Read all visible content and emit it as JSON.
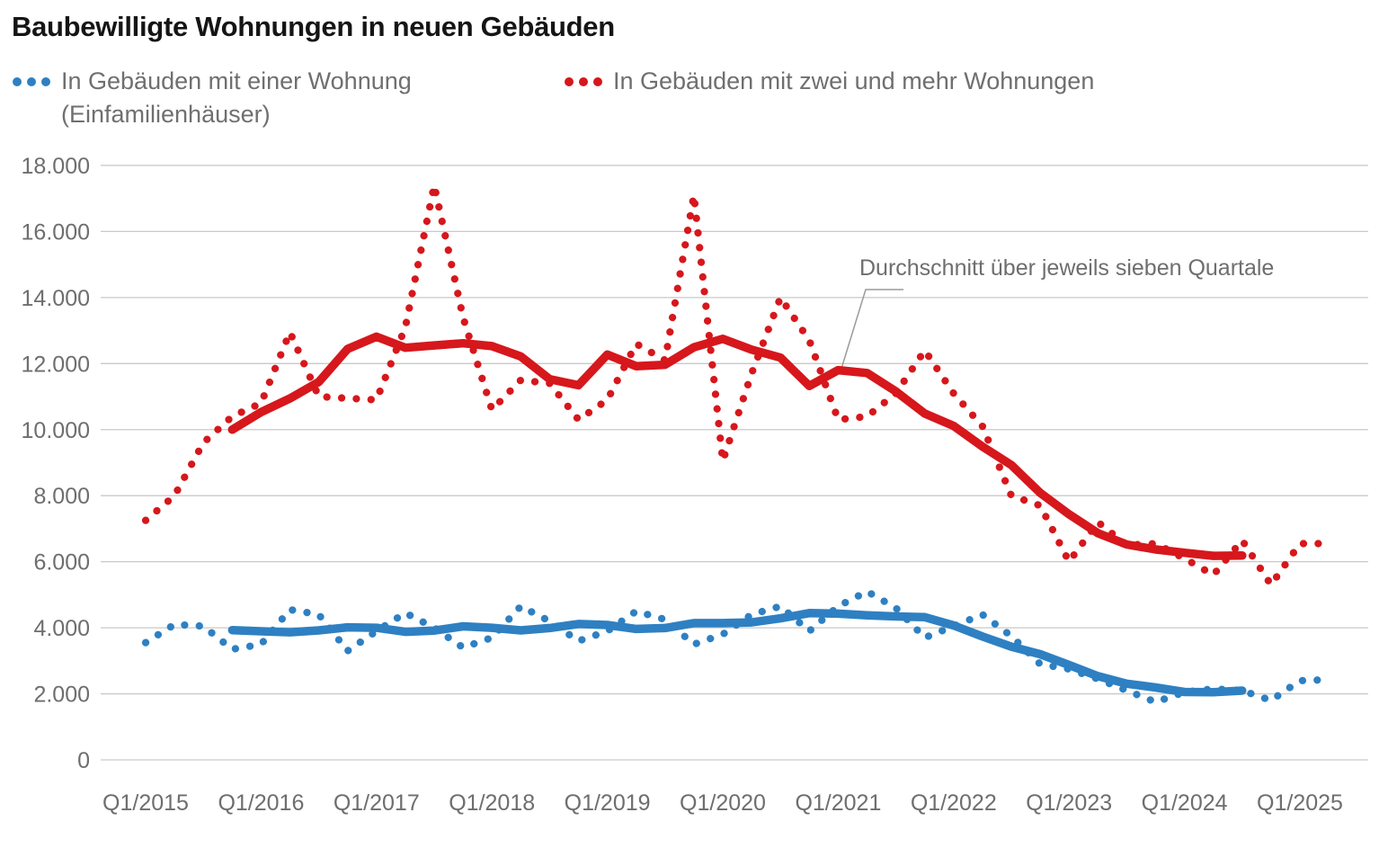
{
  "title": "Baubewilligte Wohnungen in neuen Gebäuden",
  "legend": {
    "items": [
      {
        "label_line1": "In Gebäuden mit einer Wohnung",
        "label_line2": "(Einfamilienhäuser)",
        "color": "#2e80c2"
      },
      {
        "label_line1": "In Gebäuden mit zwei und mehr Wohnungen",
        "label_line2": "",
        "color": "#d6171c"
      }
    ]
  },
  "annotation": {
    "text": "Durchschnitt über jeweils sieben Quartale"
  },
  "colors": {
    "blue": "#2e80c2",
    "red": "#d6171c",
    "grid": "#c9c9c9",
    "axis_text": "#6e6e6e",
    "title_text": "#151515",
    "connector": "#9a9a9a"
  },
  "chart_data": {
    "type": "line",
    "title": "Baubewilligte Wohnungen in neuen Gebäuden",
    "x_first_quarter": "Q1/2015",
    "x_last_quarter": "Q2/2025",
    "x_tick_labels": [
      "Q1/2015",
      "Q1/2016",
      "Q1/2017",
      "Q1/2018",
      "Q1/2019",
      "Q1/2020",
      "Q1/2021",
      "Q1/2022",
      "Q1/2023",
      "Q1/2024",
      "Q1/2025"
    ],
    "y_ticks": [
      {
        "value": 0,
        "label": "0"
      },
      {
        "value": 2000,
        "label": "2.000"
      },
      {
        "value": 4000,
        "label": "4.000"
      },
      {
        "value": 6000,
        "label": "6.000"
      },
      {
        "value": 8000,
        "label": "8.000"
      },
      {
        "value": 10000,
        "label": "10.000"
      },
      {
        "value": 12000,
        "label": "12.000"
      },
      {
        "value": 14000,
        "label": "14.000"
      },
      {
        "value": 16000,
        "label": "16.000"
      },
      {
        "value": 18000,
        "label": "18.000"
      }
    ],
    "ylim": [
      0,
      18000
    ],
    "grid": "horizontal",
    "legend_position": "top",
    "series": [
      {
        "name": "In Gebäuden mit einer Wohnung (Einfamilienhäuser)",
        "style": "dotted",
        "color": "#2e80c2",
        "values": [
          3550,
          4100,
          4050,
          3350,
          3500,
          4550,
          4400,
          3300,
          3900,
          4450,
          4000,
          3400,
          3700,
          4650,
          4200,
          3600,
          3900,
          4500,
          4250,
          3500,
          3800,
          4400,
          4650,
          3900,
          4650,
          5100,
          4600,
          3700,
          4050,
          4400,
          3750,
          2900,
          2750,
          2450,
          2100,
          1750,
          2050,
          2150,
          2100,
          1800,
          2400,
          2430
        ]
      },
      {
        "name": "In Gebäuden mit zwei und mehr Wohnungen",
        "style": "dotted",
        "color": "#d6171c",
        "values": [
          7250,
          8000,
          9600,
          10400,
          10800,
          12950,
          11000,
          10950,
          10900,
          13100,
          17400,
          13400,
          10600,
          11500,
          11400,
          10300,
          10900,
          12600,
          12100,
          17100,
          9050,
          11700,
          14000,
          12700,
          10300,
          10400,
          11100,
          12400,
          11100,
          10100,
          8000,
          7700,
          6000,
          7200,
          6500,
          6550,
          6100,
          5600,
          6650,
          5300,
          6550,
          6550
        ]
      }
    ],
    "derived_lines": {
      "label": "Durchschnitt über jeweils sieben Quartale",
      "type": "centered_moving_average",
      "window": 7
    }
  }
}
